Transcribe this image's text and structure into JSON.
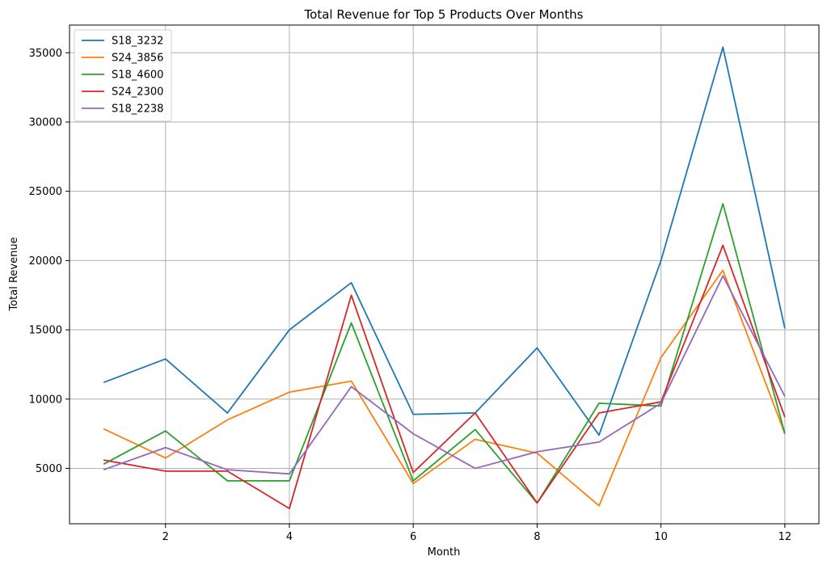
{
  "chart_data": {
    "type": "line",
    "title": "Total Revenue for Top 5 Products Over Months",
    "xlabel": "Month",
    "ylabel": "Total Revenue",
    "x": [
      1,
      2,
      3,
      4,
      5,
      6,
      7,
      8,
      9,
      10,
      11,
      12
    ],
    "xlim": [
      0.45,
      12.55
    ],
    "ylim": [
      1000,
      37000
    ],
    "xticks": [
      2,
      4,
      6,
      8,
      10,
      12
    ],
    "yticks": [
      5000,
      10000,
      15000,
      20000,
      25000,
      30000,
      35000
    ],
    "grid": true,
    "legend_position": "upper-left",
    "series": [
      {
        "name": "S18_3232",
        "color": "#1f77b4",
        "values": [
          11200,
          12900,
          9000,
          15000,
          18400,
          8900,
          9000,
          13700,
          7400,
          20000,
          35400,
          15100
        ]
      },
      {
        "name": "S24_3856",
        "color": "#ff7f0e",
        "values": [
          7850,
          5750,
          8500,
          10500,
          11300,
          3900,
          7100,
          6100,
          2300,
          13000,
          19300,
          7500
        ]
      },
      {
        "name": "S18_4600",
        "color": "#2ca02c",
        "values": [
          5300,
          7700,
          4100,
          4100,
          15500,
          4100,
          7800,
          2500,
          9700,
          9500,
          24100,
          7500
        ]
      },
      {
        "name": "S24_2300",
        "color": "#d62728",
        "values": [
          5600,
          4800,
          4800,
          2100,
          17500,
          4700,
          9000,
          2500,
          9000,
          9800,
          21100,
          8700
        ]
      },
      {
        "name": "S18_2238",
        "color": "#9467bd",
        "values": [
          4900,
          6500,
          4900,
          4600,
          10900,
          7500,
          5000,
          6200,
          6900,
          9700,
          18900,
          10200
        ]
      }
    ]
  }
}
